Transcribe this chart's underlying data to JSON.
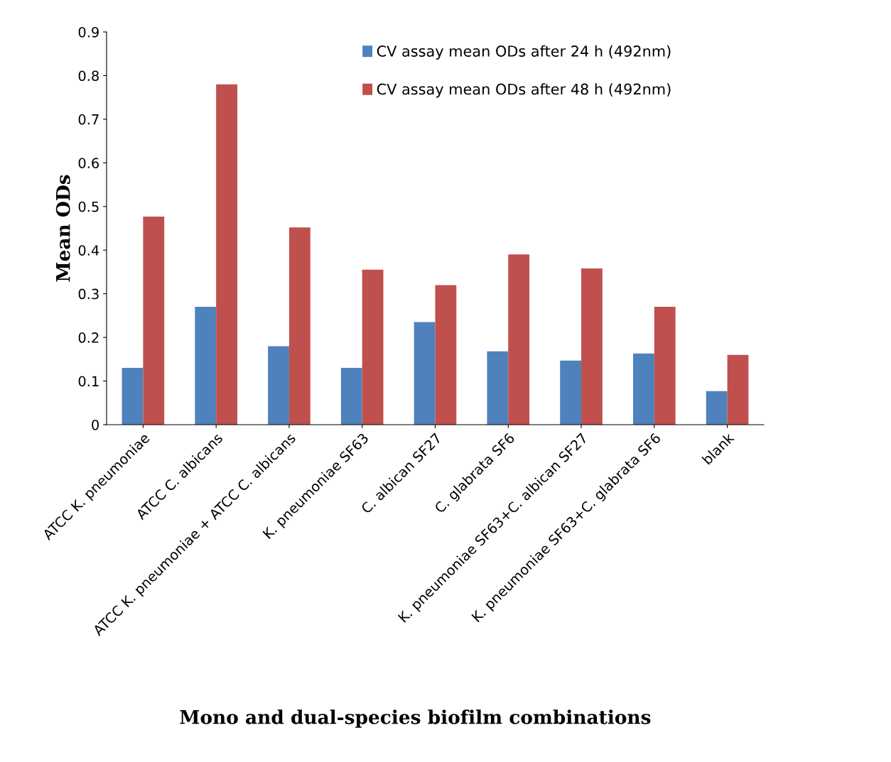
{
  "chart_data": {
    "type": "bar",
    "xlabel": "Mono and dual-species biofilm combinations",
    "ylabel": "Mean ODs",
    "categories": [
      "ATCC K. pneumoniae",
      "ATCC C. albicans",
      "ATCC K. pneumoniae + ATCC C. albicans",
      "K. pneumoniae SF63",
      "C. albican SF27",
      "C. glabrata SF6",
      "K. pneumoniae SF63+C. albican SF27",
      "K. pneumoniae SF63+C. glabrata SF6",
      "blank"
    ],
    "series": [
      {
        "name": "CV assay mean ODs after 24 h (492nm)",
        "color": "#4f81bd",
        "values": [
          0.13,
          0.27,
          0.18,
          0.13,
          0.235,
          0.168,
          0.147,
          0.163,
          0.077
        ]
      },
      {
        "name": "CV assay mean ODs after 48 h (492nm)",
        "color": "#c0504d",
        "values": [
          0.477,
          0.78,
          0.452,
          0.355,
          0.32,
          0.39,
          0.358,
          0.27,
          0.16
        ]
      }
    ],
    "ylim": [
      0,
      0.9
    ],
    "yticks": [
      0,
      0.1,
      0.2,
      0.3,
      0.4,
      0.5,
      0.6,
      0.7,
      0.8,
      0.9
    ],
    "grid": false,
    "legend": "top right"
  }
}
